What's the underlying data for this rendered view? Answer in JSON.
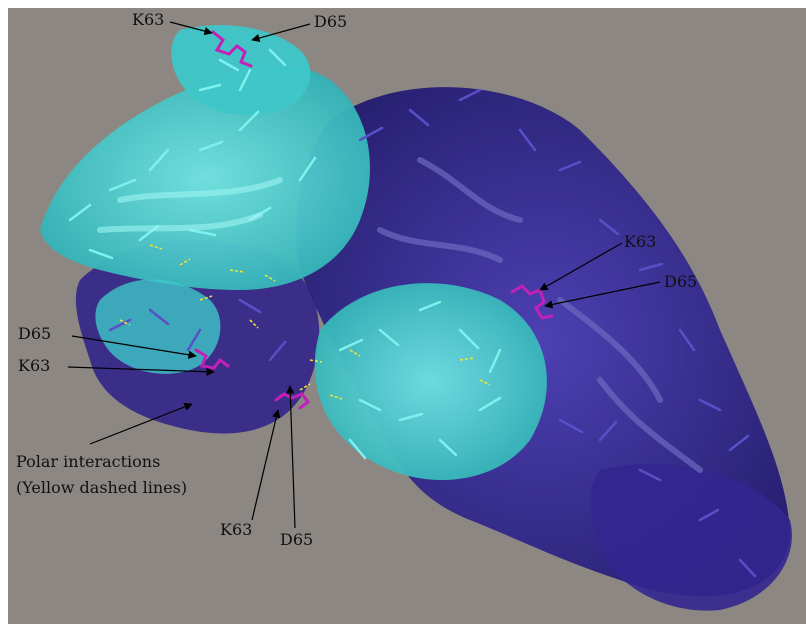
{
  "figure": {
    "labels": {
      "top_k63": "K63",
      "top_d65": "D65",
      "right_k63": "K63",
      "right_d65": "D65",
      "left_d65": "D65",
      "left_k63": "K63",
      "bottom_k63": "K63",
      "bottom_d65": "D65",
      "polar_line1": "Polar interactions",
      "polar_line2": "(Yellow dashed lines)"
    },
    "colors": {
      "background": "#8c8782",
      "chain_a": "#3ec6c8",
      "chain_a_light": "#6fe3e2",
      "chain_b": "#2b1f8a",
      "chain_b_light": "#4a3db5",
      "residue_highlight": "#c320b8",
      "polar_bond": "#f2e33a",
      "arrow": "#000000"
    }
  }
}
